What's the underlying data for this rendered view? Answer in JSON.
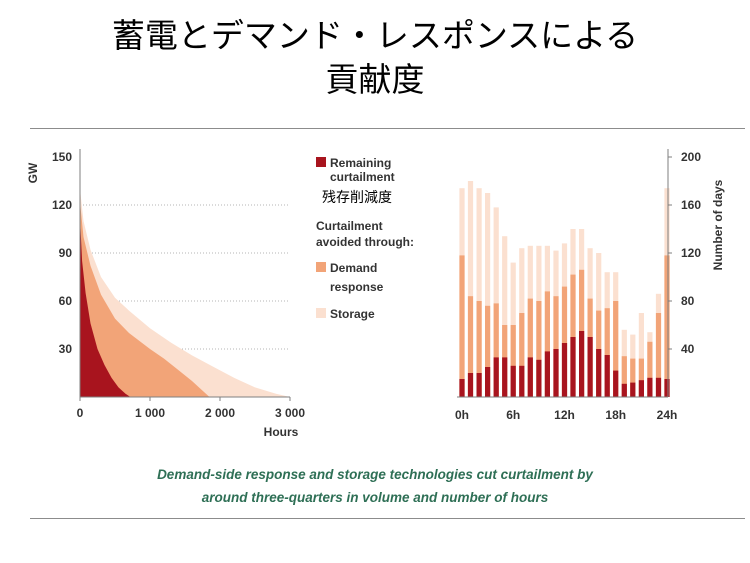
{
  "title": {
    "line1": "蓄電とデマンド・レスポンスによる",
    "line2": "貢献度"
  },
  "caption": {
    "line1": "Demand-side response and storage technologies cut curtailment by",
    "line2": "around three-quarters in volume and number of hours"
  },
  "legend": {
    "remaining": "Remaining curtailment",
    "remaining_ja": "残存削減度",
    "heading": "Curtailment avoided through:",
    "demand": "Demand response",
    "storage": "Storage"
  },
  "colors": {
    "remaining": "#a8141e",
    "demand": "#f2a478",
    "storage": "#fbe0d0",
    "caption": "#2e6f55",
    "axis": "#7f7f7f"
  },
  "chart_data": [
    {
      "type": "area",
      "ylabel": "GW",
      "xlabel": "Hours",
      "ylim": [
        0,
        150
      ],
      "xlim": [
        0,
        3000
      ],
      "yticks": [
        30,
        60,
        90,
        120,
        150
      ],
      "xticks": [
        0,
        1000,
        2000,
        3000
      ],
      "xtick_labels": [
        "0",
        "1 000",
        "2 000",
        "3 000"
      ],
      "grid": true,
      "series": [
        {
          "name": "Storage",
          "points": [
            [
              0,
              130
            ],
            [
              50,
              110
            ],
            [
              150,
              92
            ],
            [
              300,
              75
            ],
            [
              500,
              62
            ],
            [
              700,
              54
            ],
            [
              1000,
              43
            ],
            [
              1300,
              34
            ],
            [
              1600,
              26
            ],
            [
              1900,
              19
            ],
            [
              2200,
              12
            ],
            [
              2500,
              6
            ],
            [
              2800,
              2
            ],
            [
              3000,
              0
            ]
          ]
        },
        {
          "name": "Demand response",
          "points": [
            [
              0,
              122
            ],
            [
              50,
              100
            ],
            [
              150,
              82
            ],
            [
              300,
              64
            ],
            [
              500,
              49
            ],
            [
              700,
              40
            ],
            [
              1000,
              30
            ],
            [
              1200,
              24
            ],
            [
              1400,
              17
            ],
            [
              1600,
              10
            ],
            [
              1750,
              4
            ],
            [
              1850,
              0
            ]
          ]
        },
        {
          "name": "Remaining curtailment",
          "points": [
            [
              0,
              112
            ],
            [
              30,
              85
            ],
            [
              80,
              65
            ],
            [
              150,
              46
            ],
            [
              250,
              30
            ],
            [
              350,
              20
            ],
            [
              450,
              12
            ],
            [
              550,
              6
            ],
            [
              650,
              2
            ],
            [
              720,
              0
            ]
          ]
        }
      ]
    },
    {
      "type": "bar",
      "ylabel": "Number of days",
      "ylim": [
        0,
        200
      ],
      "yticks": [
        40,
        80,
        120,
        160,
        200
      ],
      "xtick_labels": [
        "0h",
        "6h",
        "12h",
        "18h",
        "24h"
      ],
      "categories": [
        "0",
        "1",
        "2",
        "3",
        "4",
        "5",
        "6",
        "7",
        "8",
        "9",
        "10",
        "11",
        "12",
        "13",
        "14",
        "15",
        "16",
        "17",
        "18",
        "19",
        "20",
        "21",
        "22",
        "23",
        "24"
      ],
      "series": [
        {
          "name": "Remaining curtailment",
          "values": [
            15,
            20,
            20,
            25,
            33,
            33,
            26,
            26,
            33,
            31,
            38,
            40,
            45,
            50,
            55,
            50,
            40,
            35,
            22,
            11,
            12,
            14,
            16,
            16,
            15
          ]
        },
        {
          "name": "Demand response",
          "values": [
            118,
            84,
            80,
            76,
            78,
            60,
            60,
            70,
            82,
            80,
            88,
            84,
            92,
            102,
            106,
            82,
            72,
            74,
            80,
            34,
            32,
            32,
            46,
            70,
            118
          ]
        },
        {
          "name": "Storage",
          "values": [
            174,
            180,
            174,
            170,
            158,
            134,
            112,
            124,
            126,
            126,
            126,
            122,
            128,
            140,
            140,
            124,
            120,
            104,
            104,
            56,
            52,
            70,
            54,
            86,
            174
          ]
        }
      ]
    }
  ]
}
